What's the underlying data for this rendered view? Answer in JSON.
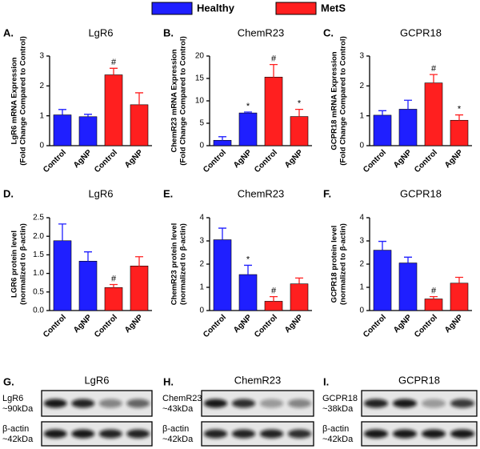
{
  "legend": {
    "items": [
      {
        "name": "Healthy",
        "color": "#1f1fff"
      },
      {
        "name": "MetS",
        "color": "#ff1f1f"
      }
    ]
  },
  "chart_data": [
    {
      "type": "bar",
      "letter": "A.",
      "title": "LgR6",
      "ylabel": [
        "LgR6 mRNA Expression",
        "(Fold Change Compared to Control)"
      ],
      "categories": [
        "Control",
        "AgNP",
        "Control",
        "AgNP"
      ],
      "values": [
        1.03,
        0.97,
        2.37,
        1.37
      ],
      "errors": [
        0.18,
        0.08,
        0.22,
        0.4
      ],
      "colors": [
        "#1f1fff",
        "#1f1fff",
        "#ff1f1f",
        "#ff1f1f"
      ],
      "markers": [
        null,
        null,
        "#",
        null
      ],
      "ylim": [
        0,
        3
      ],
      "yticks": [
        0,
        1,
        2,
        3
      ]
    },
    {
      "type": "bar",
      "letter": "B.",
      "title": "ChemR23",
      "ylabel": [
        "ChemR23 mRNA Expression",
        "(Fold Change Compared to Control)"
      ],
      "categories": [
        "Control",
        "AgNP",
        "Control",
        "AgNP"
      ],
      "values": [
        1.2,
        7.3,
        15.3,
        6.5
      ],
      "errors": [
        0.8,
        0.2,
        2.8,
        1.6
      ],
      "colors": [
        "#1f1fff",
        "#1f1fff",
        "#ff1f1f",
        "#ff1f1f"
      ],
      "markers": [
        null,
        "*",
        "#",
        "*"
      ],
      "ylim": [
        0,
        20
      ],
      "yticks": [
        0,
        5,
        10,
        15,
        20
      ]
    },
    {
      "type": "bar",
      "letter": "C.",
      "title": "GCPR18",
      "ylabel": [
        "GCPR18 mRNA Expression",
        "(Fold Change Compared to Control)"
      ],
      "categories": [
        "Control",
        "AgNP",
        "Control",
        "AgNP"
      ],
      "values": [
        1.02,
        1.22,
        2.1,
        0.85
      ],
      "errors": [
        0.15,
        0.3,
        0.28,
        0.18
      ],
      "colors": [
        "#1f1fff",
        "#1f1fff",
        "#ff1f1f",
        "#ff1f1f"
      ],
      "markers": [
        null,
        null,
        "#",
        "*"
      ],
      "ylim": [
        0,
        3
      ],
      "yticks": [
        0,
        1,
        2,
        3
      ]
    },
    {
      "type": "bar",
      "letter": "D.",
      "title": "LgR6",
      "ylabel": [
        "LGR6 protein level",
        "(normalized to β-actin)"
      ],
      "categories": [
        "Control",
        "AgNP",
        "Control",
        "AgNP"
      ],
      "values": [
        1.88,
        1.33,
        0.62,
        1.2
      ],
      "errors": [
        0.45,
        0.25,
        0.08,
        0.25
      ],
      "colors": [
        "#1f1fff",
        "#1f1fff",
        "#ff1f1f",
        "#ff1f1f"
      ],
      "markers": [
        null,
        null,
        "#",
        null
      ],
      "ylim": [
        0,
        2.5
      ],
      "yticks": [
        {
          "value": 0,
          "label": "0.0"
        },
        0.5,
        {
          "value": 1,
          "label": "1.0"
        },
        1.5,
        {
          "value": 2,
          "label": "2.0"
        },
        2.5
      ]
    },
    {
      "type": "bar",
      "letter": "E.",
      "title": "ChemR23",
      "ylabel": [
        "ChemR23 protein level",
        "(normalized to β-actin)"
      ],
      "categories": [
        "Control",
        "AgNP",
        "Control",
        "AgNP"
      ],
      "values": [
        3.05,
        1.55,
        0.4,
        1.15
      ],
      "errors": [
        0.5,
        0.4,
        0.2,
        0.25
      ],
      "colors": [
        "#1f1fff",
        "#1f1fff",
        "#ff1f1f",
        "#ff1f1f"
      ],
      "markers": [
        null,
        "*",
        "#",
        null
      ],
      "ylim": [
        0,
        4
      ],
      "yticks": [
        0,
        1,
        2,
        3,
        4
      ]
    },
    {
      "type": "bar",
      "letter": "F.",
      "title": "GCPR18",
      "ylabel": [
        "GCPR18 protein level",
        "(normalized to β-actin)"
      ],
      "categories": [
        "Control",
        "AgNP",
        "Control",
        "AgNP"
      ],
      "values": [
        2.6,
        2.05,
        0.5,
        1.18
      ],
      "errors": [
        0.38,
        0.25,
        0.1,
        0.25
      ],
      "colors": [
        "#1f1fff",
        "#1f1fff",
        "#ff1f1f",
        "#ff1f1f"
      ],
      "markers": [
        null,
        null,
        "#",
        null
      ],
      "ylim": [
        0,
        4
      ],
      "yticks": [
        0,
        1,
        2,
        3,
        4
      ]
    }
  ],
  "blots": [
    {
      "letter": "G.",
      "title": "LgR6",
      "rows": [
        [
          "LgR6",
          "~90kDa"
        ],
        [
          "β-actin",
          "~42kDa"
        ]
      ]
    },
    {
      "letter": "H.",
      "title": "ChemR23",
      "rows": [
        [
          "ChemR23",
          "~43kDa"
        ],
        [
          "β-actin",
          "~42kDa"
        ]
      ]
    },
    {
      "letter": "I.",
      "title": "GCPR18",
      "rows": [
        [
          "GCPR18",
          "~38kDa"
        ],
        [
          "β-actin",
          "~42kDa"
        ]
      ]
    }
  ]
}
